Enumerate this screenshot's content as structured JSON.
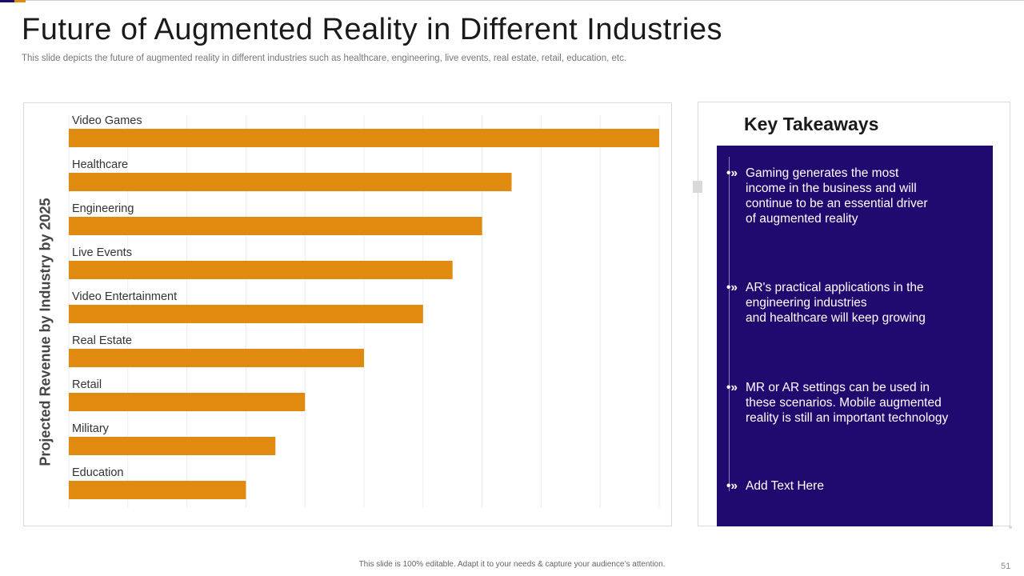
{
  "slide": {
    "title": "Future of Augmented Reality in Different Industries",
    "subtitle": "This slide depicts the future of augmented reality in different industries such as healthcare, engineering, live events, real estate, retail, education, etc.",
    "footer": "This slide is 100% editable.  Adapt it to your needs & capture your audience’s attention.",
    "page_number": "51"
  },
  "colors": {
    "bar": "#e08a10",
    "panel": "#200a6f",
    "accent": "#1f0a6e",
    "grid": "#ececec"
  },
  "chart_data": {
    "type": "bar",
    "orientation": "horizontal",
    "title": "",
    "ylabel": "Projected Revenue by Industry by 2025",
    "xlabel": "",
    "categories": [
      "Video Games",
      "Healthcare",
      "Engineering",
      "Live Events",
      "Video Entertainment",
      "Real Estate",
      "Retail",
      "Military",
      "Education"
    ],
    "values": [
      10,
      7.5,
      7,
      6.5,
      6,
      5,
      4,
      3.5,
      3
    ],
    "xlim": [
      0,
      10
    ],
    "grid": true,
    "legend": "none"
  },
  "takeaways": {
    "title": "Key Takeaways",
    "marker": "•»",
    "items": [
      "Gaming generates the most\nincome in the business and will\ncontinue to be an essential driver\nof augmented reality",
      "AR's practical applications in the\nengineering industries\nand healthcare will keep growing",
      "MR or AR settings can be used in\nthese scenarios. Mobile augmented\nreality is still an important technology",
      "Add Text Here"
    ]
  }
}
